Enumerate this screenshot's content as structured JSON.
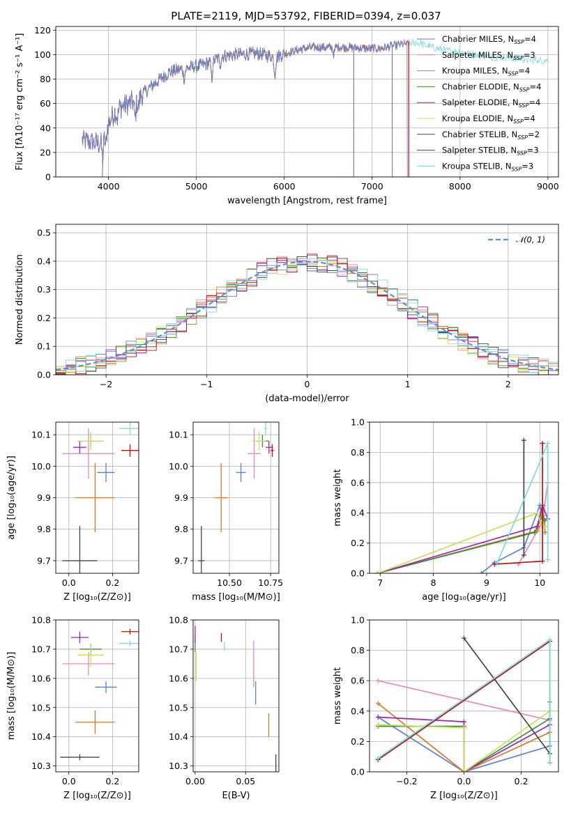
{
  "figure": {
    "title": "PLATE=2119, MJD=53792, FIBERID=0394, z=0.037"
  },
  "colors": {
    "Chabrier MILES": "#5b7fd1",
    "Salpeter MILES": "#e58ab8",
    "Kroupa MILES": "#d9772a",
    "Chabrier ELODIE": "#3a8f3a",
    "Salpeter ELODIE": "#9b27af",
    "Kroupa ELODIE": "#c8e05a",
    "Chabrier STELIB": "#444444",
    "Salpeter STELIB": "#b01515",
    "Kroupa STELIB": "#7fd9e0"
  },
  "models": [
    {
      "key": "Chabrier MILES",
      "legend": "Chabrier MILES, N",
      "sub": "SSP",
      "n": "=4"
    },
    {
      "key": "Salpeter MILES",
      "legend": "Salpeter MILES, N",
      "sub": "SSP",
      "n": "=3"
    },
    {
      "key": "Kroupa MILES",
      "legend": "Kroupa MILES, N",
      "sub": "SSP",
      "n": "=4"
    },
    {
      "key": "Chabrier ELODIE",
      "legend": "Chabrier ELODIE, N",
      "sub": "SSP",
      "n": "=4"
    },
    {
      "key": "Salpeter ELODIE",
      "legend": "Salpeter ELODIE, N",
      "sub": "SSP",
      "n": "=4"
    },
    {
      "key": "Kroupa ELODIE",
      "legend": "Kroupa ELODIE, N",
      "sub": "SSP",
      "n": "=4"
    },
    {
      "key": "Chabrier STELIB",
      "legend": "Chabrier STELIB, N",
      "sub": "SSP",
      "n": "=2"
    },
    {
      "key": "Salpeter STELIB",
      "legend": "Salpeter STELIB, N",
      "sub": "SSP",
      "n": "=3"
    },
    {
      "key": "Kroupa STELIB",
      "legend": "Kroupa STELIB, N",
      "sub": "SSP",
      "n": "=3"
    }
  ],
  "chart_data": [
    {
      "type": "line",
      "id": "spectrum",
      "xlabel": "wavelength [Angstrom, rest frame]",
      "ylabel": "Flux [fλ10⁻¹⁷ erg cm⁻² s⁻¹ A⁻¹]",
      "xlim": [
        3400,
        9120
      ],
      "ylim": [
        0,
        123
      ],
      "xticks": [
        4000,
        5000,
        6000,
        7000,
        8000,
        9000
      ],
      "yticks": [
        0,
        20,
        40,
        60,
        80,
        100,
        120
      ],
      "x_range": [
        3700,
        9000
      ],
      "continuum": {
        "x": [
          3700,
          3900,
          4000,
          4100,
          4300,
          4500,
          4700,
          4900,
          5100,
          5300,
          5500,
          5700,
          5900,
          6100,
          6300,
          6500,
          6700,
          6900,
          7100,
          7300,
          7500,
          7800,
          8000,
          8300,
          8600,
          8800,
          9000
        ],
        "y": [
          30,
          27,
          44,
          56,
          62,
          75,
          86,
          89,
          92,
          99,
          100,
          101,
          98,
          103,
          106,
          106,
          106,
          105,
          105,
          108,
          110,
          104,
          102,
          99,
          97,
          96,
          95
        ]
      },
      "absorption_lines": [
        {
          "x": 3934,
          "depth": 18
        },
        {
          "x": 3969,
          "depth": 14
        },
        {
          "x": 4102,
          "depth": 8
        },
        {
          "x": 4304,
          "depth": 14
        },
        {
          "x": 4340,
          "depth": 8
        },
        {
          "x": 4861,
          "depth": 8
        },
        {
          "x": 5175,
          "depth": 14
        },
        {
          "x": 5270,
          "depth": 6
        },
        {
          "x": 5893,
          "depth": 14
        },
        {
          "x": 6563,
          "depth": 6
        }
      ],
      "model_end_wavelengths": {
        "Chabrier MILES": 7400,
        "Salpeter MILES": 7410,
        "Kroupa MILES": 7415,
        "Chabrier ELODIE": 6790,
        "Salpeter ELODIE": 6790,
        "Kroupa ELODIE": 6790,
        "Chabrier STELIB": 7230,
        "Salpeter STELIB": 7420,
        "Kroupa STELIB": 9000
      },
      "model_start_wavelengths": {
        "Kroupa ELODIE": 3930,
        "Chabrier ELODIE": 3930,
        "Salpeter ELODIE": 3930
      }
    },
    {
      "type": "bar",
      "id": "residual-histogram",
      "xlabel": "(data-model)/error",
      "ylabel": "Normed distribution",
      "xlim": [
        -2.5,
        2.5
      ],
      "ylim": [
        0,
        0.53
      ],
      "xticks": [
        -2,
        -1,
        0,
        1,
        2
      ],
      "yticks": [
        0.0,
        0.1,
        0.2,
        0.3,
        0.4,
        0.5
      ],
      "bin_width": 0.1,
      "reference_curve_legend": "𝒩(0, 1)",
      "reference_curve": {
        "type": "gaussian",
        "mean": 0,
        "sigma": 1
      }
    },
    {
      "type": "scatter",
      "id": "age-vs-metallicity",
      "xlabel": "Z [log₁₀(Z/Z⊙)]",
      "ylabel": "age  [log₁₀(age/yr)]",
      "xlim": [
        -0.06,
        0.32
      ],
      "ylim": [
        9.66,
        10.14
      ],
      "xticks": [
        0.0,
        0.2
      ],
      "yticks": [
        9.7,
        9.8,
        9.9,
        10.0,
        10.1
      ],
      "points": [
        {
          "model": "Chabrier MILES",
          "x": 0.17,
          "y": 9.98,
          "xerr": 0.04,
          "yerr": 0.03
        },
        {
          "model": "Salpeter MILES",
          "x": 0.09,
          "y": 10.04,
          "xerr": 0.12,
          "yerr": 0.08
        },
        {
          "model": "Kroupa MILES",
          "x": 0.12,
          "y": 9.9,
          "xerr": 0.09,
          "yerr": 0.11
        },
        {
          "model": "Chabrier ELODIE",
          "x": 0.1,
          "y": 10.08,
          "xerr": 0.06,
          "yerr": 0.02
        },
        {
          "model": "Salpeter ELODIE",
          "x": 0.05,
          "y": 10.06,
          "xerr": 0.03,
          "yerr": 0.02
        },
        {
          "model": "Kroupa ELODIE",
          "x": 0.1,
          "y": 10.08,
          "xerr": 0.06,
          "yerr": 0.03
        },
        {
          "model": "Chabrier STELIB",
          "x": 0.05,
          "y": 9.7,
          "xerr": 0.08,
          "yerr": 0.11
        },
        {
          "model": "Salpeter STELIB",
          "x": 0.28,
          "y": 10.05,
          "xerr": 0.04,
          "yerr": 0.02
        },
        {
          "model": "Kroupa STELIB",
          "x": 0.28,
          "y": 10.12,
          "xerr": 0.05,
          "yerr": 0.02
        }
      ]
    },
    {
      "type": "scatter",
      "id": "age-vs-mass",
      "xlabel": "mass [log₁₀(M/M⊙)]",
      "ylabel": "",
      "xlim": [
        10.28,
        10.8
      ],
      "ylim": [
        9.66,
        10.14
      ],
      "xticks": [
        10.5,
        10.75
      ],
      "xtick_labels": [
        "10.50",
        "10.75"
      ],
      "yticks": [
        9.7,
        9.8,
        9.9,
        10.0,
        10.1
      ],
      "points": [
        {
          "model": "Chabrier MILES",
          "x": 10.57,
          "y": 9.98,
          "xerr": 0.03,
          "yerr": 0.03
        },
        {
          "model": "Salpeter MILES",
          "x": 10.65,
          "y": 10.04,
          "xerr": 0.04,
          "yerr": 0.08
        },
        {
          "model": "Kroupa MILES",
          "x": 10.45,
          "y": 9.9,
          "xerr": 0.04,
          "yerr": 0.11
        },
        {
          "model": "Chabrier ELODIE",
          "x": 10.7,
          "y": 10.08,
          "xerr": 0.04,
          "yerr": 0.02
        },
        {
          "model": "Salpeter ELODIE",
          "x": 10.74,
          "y": 10.06,
          "xerr": 0.02,
          "yerr": 0.02
        },
        {
          "model": "Kroupa ELODIE",
          "x": 10.68,
          "y": 10.08,
          "xerr": 0.04,
          "yerr": 0.03
        },
        {
          "model": "Chabrier STELIB",
          "x": 10.33,
          "y": 9.7,
          "xerr": 0.02,
          "yerr": 0.11
        },
        {
          "model": "Salpeter STELIB",
          "x": 10.76,
          "y": 10.05,
          "xerr": 0.01,
          "yerr": 0.02
        },
        {
          "model": "Kroupa STELIB",
          "x": 10.72,
          "y": 10.12,
          "xerr": 0.01,
          "yerr": 0.02
        }
      ]
    },
    {
      "type": "line",
      "id": "mass-weight-vs-age",
      "xlabel": "age  [log₁₀(age/yr)]",
      "ylabel": "mass weight",
      "xlim": [
        6.8,
        10.35
      ],
      "ylim": [
        0,
        1
      ],
      "xticks": [
        7,
        8,
        9,
        10
      ],
      "yticks": [
        0.0,
        0.2,
        0.4,
        0.6,
        0.8,
        1.0
      ],
      "series": [
        {
          "model": "Chabrier MILES",
          "x": [
            8.9,
            9.15,
            9.7,
            10.0,
            10.1
          ],
          "y": [
            0.0,
            0.07,
            0.17,
            0.45,
            0.31
          ]
        },
        {
          "model": "Salpeter MILES",
          "x": [
            9.6,
            10.05,
            10.15
          ],
          "y": [
            0.06,
            0.34,
            0.6
          ]
        },
        {
          "model": "Kroupa MILES",
          "x": [
            6.95,
            9.95,
            10.05,
            10.1
          ],
          "y": [
            0.0,
            0.28,
            0.45,
            0.27
          ]
        },
        {
          "model": "Chabrier ELODIE",
          "x": [
            6.95,
            9.9,
            10.05,
            10.1
          ],
          "y": [
            0.0,
            0.27,
            0.38,
            0.35
          ]
        },
        {
          "model": "Salpeter ELODIE",
          "x": [
            6.95,
            9.95,
            10.05,
            10.15
          ],
          "y": [
            0.0,
            0.31,
            0.45,
            0.36
          ]
        },
        {
          "model": "Kroupa ELODIE",
          "x": [
            6.95,
            9.95,
            10.05,
            10.1
          ],
          "y": [
            0.0,
            0.4,
            0.3,
            0.31
          ]
        },
        {
          "model": "Chabrier STELIB",
          "x": [
            9.7,
            9.7
          ],
          "y": [
            0.12,
            0.88
          ]
        },
        {
          "model": "Salpeter STELIB",
          "x": [
            9.15,
            10.05,
            10.05
          ],
          "y": [
            0.06,
            0.08,
            0.86
          ]
        },
        {
          "model": "Kroupa STELIB",
          "x": [
            9.2,
            10.15,
            10.15
          ],
          "y": [
            0.07,
            0.86,
            0.09
          ]
        }
      ]
    },
    {
      "type": "scatter",
      "id": "mass-vs-metallicity",
      "xlabel": "Z [log₁₀(Z/Z⊙)]",
      "ylabel": "mass [log₁₀(M/M⊙)]",
      "xlim": [
        -0.06,
        0.32
      ],
      "ylim": [
        10.28,
        10.8
      ],
      "xticks": [
        0.0,
        0.2
      ],
      "yticks": [
        10.3,
        10.4,
        10.5,
        10.6,
        10.7,
        10.8
      ],
      "points": [
        {
          "model": "Chabrier MILES",
          "x": 0.17,
          "y": 10.57,
          "xerr": 0.05,
          "yerr": 0.02
        },
        {
          "model": "Salpeter MILES",
          "x": 0.09,
          "y": 10.65,
          "xerr": 0.12,
          "yerr": 0.04
        },
        {
          "model": "Kroupa MILES",
          "x": 0.12,
          "y": 10.45,
          "xerr": 0.09,
          "yerr": 0.04
        },
        {
          "model": "Chabrier ELODIE",
          "x": 0.1,
          "y": 10.7,
          "xerr": 0.05,
          "yerr": 0.02
        },
        {
          "model": "Salpeter ELODIE",
          "x": 0.05,
          "y": 10.74,
          "xerr": 0.04,
          "yerr": 0.02
        },
        {
          "model": "Kroupa ELODIE",
          "x": 0.1,
          "y": 10.68,
          "xerr": 0.06,
          "yerr": 0.04
        },
        {
          "model": "Chabrier STELIB",
          "x": 0.05,
          "y": 10.33,
          "xerr": 0.09,
          "yerr": 0.01
        },
        {
          "model": "Salpeter STELIB",
          "x": 0.28,
          "y": 10.76,
          "xerr": 0.04,
          "yerr": 0.01
        },
        {
          "model": "Kroupa STELIB",
          "x": 0.28,
          "y": 10.72,
          "xerr": 0.05,
          "yerr": 0.01
        }
      ]
    },
    {
      "type": "scatter",
      "id": "mass-vs-ebv",
      "xlabel": "E(B-V)",
      "ylabel": "",
      "xlim": [
        -0.002,
        0.083
      ],
      "ylim": [
        10.28,
        10.8
      ],
      "xticks": [
        0.0,
        0.05
      ],
      "xtick_labels": [
        "0.00",
        "0.05"
      ],
      "yticks": [
        10.3,
        10.4,
        10.5,
        10.6,
        10.7,
        10.8
      ],
      "points": [
        {
          "model": "Chabrier MILES",
          "x": 0.06,
          "y": 10.55,
          "xerr": 0.0,
          "yerr": 0.04
        },
        {
          "model": "Salpeter MILES",
          "x": 0.058,
          "y": 10.65,
          "xerr": 0.0,
          "yerr": 0.08
        },
        {
          "model": "Kroupa MILES",
          "x": 0.073,
          "y": 10.44,
          "xerr": 0.0,
          "yerr": 0.04
        },
        {
          "model": "Chabrier ELODIE",
          "x": 0.0,
          "y": 10.72,
          "xerr": 0.0,
          "yerr": 0.03
        },
        {
          "model": "Salpeter ELODIE",
          "x": 0.0,
          "y": 10.75,
          "xerr": 0.0,
          "yerr": 0.03
        },
        {
          "model": "Kroupa ELODIE",
          "x": 0.001,
          "y": 10.64,
          "xerr": 0.0,
          "yerr": 0.05
        },
        {
          "model": "Chabrier STELIB",
          "x": 0.08,
          "y": 10.31,
          "xerr": 0.0,
          "yerr": 0.03
        },
        {
          "model": "Salpeter STELIB",
          "x": 0.026,
          "y": 10.74,
          "xerr": 0.0,
          "yerr": 0.015
        },
        {
          "model": "Kroupa STELIB",
          "x": 0.029,
          "y": 10.71,
          "xerr": 0.0,
          "yerr": 0.015
        }
      ]
    },
    {
      "type": "line",
      "id": "mass-weight-vs-metallicity",
      "xlabel": "Z [log₁₀(Z/Z⊙)]",
      "ylabel": "mass weight",
      "xlim": [
        -0.33,
        0.33
      ],
      "ylim": [
        0,
        1
      ],
      "xticks": [
        -0.2,
        0.0,
        0.2
      ],
      "yticks": [
        0.0,
        0.2,
        0.4,
        0.6,
        0.8,
        1.0
      ],
      "series": [
        {
          "model": "Chabrier MILES",
          "x": [
            -0.3,
            0.0,
            0.3,
            0.3
          ],
          "y": [
            0.36,
            0.0,
            0.17,
            0.46
          ]
        },
        {
          "model": "Salpeter MILES",
          "x": [
            -0.3,
            0.3
          ],
          "y": [
            0.6,
            0.34
          ]
        },
        {
          "model": "Kroupa MILES",
          "x": [
            -0.3,
            0.0,
            0.3
          ],
          "y": [
            0.45,
            0.0,
            0.26
          ]
        },
        {
          "model": "Chabrier ELODIE",
          "x": [
            -0.3,
            0.0,
            0.0,
            0.3
          ],
          "y": [
            0.3,
            0.3,
            0.0,
            0.35
          ]
        },
        {
          "model": "Salpeter ELODIE",
          "x": [
            -0.3,
            0.0,
            0.0,
            0.3
          ],
          "y": [
            0.36,
            0.33,
            0.0,
            0.31
          ]
        },
        {
          "model": "Kroupa ELODIE",
          "x": [
            -0.3,
            0.0,
            0.0,
            0.3
          ],
          "y": [
            0.31,
            0.29,
            0.0,
            0.4
          ]
        },
        {
          "model": "Chabrier STELIB",
          "x": [
            -0.0,
            0.3
          ],
          "y": [
            0.88,
            0.12
          ]
        },
        {
          "model": "Salpeter STELIB",
          "x": [
            -0.3,
            0.3,
            0.3
          ],
          "y": [
            0.08,
            0.86,
            0.06
          ]
        },
        {
          "model": "Kroupa STELIB",
          "x": [
            -0.3,
            0.3,
            0.3
          ],
          "y": [
            0.09,
            0.87,
            0.06
          ]
        }
      ]
    }
  ]
}
